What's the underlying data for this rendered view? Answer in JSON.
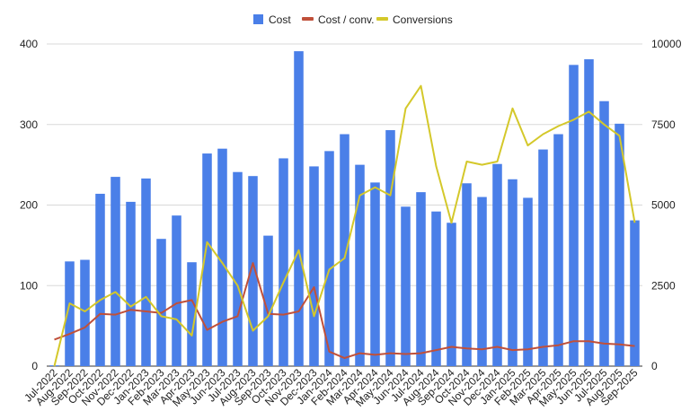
{
  "chart_data": {
    "type": "bar",
    "categories": [
      "Jul-2022",
      "Aug-2022",
      "Sep-2022",
      "Oct-2022",
      "Nov-2022",
      "Dec-2022",
      "Jan-2023",
      "Feb-2023",
      "Mar-2023",
      "Apr-2023",
      "May-2023",
      "Jun-2023",
      "Jul-2023",
      "Aug-2023",
      "Sep-2023",
      "Oct-2023",
      "Nov-2023",
      "Dec-2023",
      "Jan-2024",
      "Feb-2024",
      "Mar-2024",
      "Apr-2024",
      "May-2024",
      "Jun-2024",
      "Jul-2024",
      "Aug-2024",
      "Sep-2024",
      "Oct-2024",
      "Nov-2024",
      "Dec-2024",
      "Jan-2025",
      "Feb-2025",
      "Mar-2025",
      "Apr-2025",
      "May-2025",
      "Jun-2025",
      "Jul-2025",
      "Aug-2025",
      "Sep-2025"
    ],
    "series": [
      {
        "name": "Cost",
        "type": "bar",
        "axis": "left",
        "color": "#4a7fe8",
        "values": [
          1,
          130,
          132,
          214,
          235,
          204,
          233,
          158,
          187,
          129,
          264,
          270,
          241,
          236,
          162,
          258,
          391,
          248,
          267,
          288,
          250,
          228,
          293,
          198,
          216,
          192,
          178,
          227,
          210,
          251,
          232,
          209,
          269,
          288,
          374,
          381,
          329,
          301,
          181
        ]
      },
      {
        "name": "Cost / conv.",
        "type": "line",
        "axis": "left",
        "color": "#c0503a",
        "values": [
          33,
          40,
          48,
          65,
          64,
          70,
          68,
          66,
          78,
          82,
          45,
          55,
          62,
          128,
          65,
          64,
          68,
          98,
          18,
          10,
          16,
          14,
          16,
          15,
          16,
          20,
          24,
          22,
          21,
          24,
          20,
          21,
          24,
          26,
          31,
          31,
          28,
          27,
          25
        ]
      },
      {
        "name": "Conversions",
        "type": "line",
        "axis": "right",
        "color": "#d4c82a",
        "values": [
          0,
          1950,
          1700,
          2050,
          2300,
          1850,
          2150,
          1550,
          1450,
          950,
          3850,
          3200,
          2500,
          1100,
          1550,
          2600,
          3600,
          1550,
          3000,
          3350,
          5300,
          5550,
          5300,
          8000,
          8700,
          6200,
          4450,
          6350,
          6250,
          6350,
          8000,
          6850,
          7200,
          7450,
          7650,
          7900,
          7500,
          7150,
          4450
        ]
      }
    ],
    "y_left": {
      "min": 0,
      "max": 400,
      "ticks": [
        0,
        100,
        200,
        300,
        400
      ]
    },
    "y_right": {
      "min": 0,
      "max": 10000,
      "ticks": [
        0,
        2500,
        5000,
        7500,
        10000
      ]
    },
    "legend": {
      "position": "top",
      "entries": [
        "Cost",
        "Cost / conv.",
        "Conversions"
      ]
    },
    "grid": true
  }
}
